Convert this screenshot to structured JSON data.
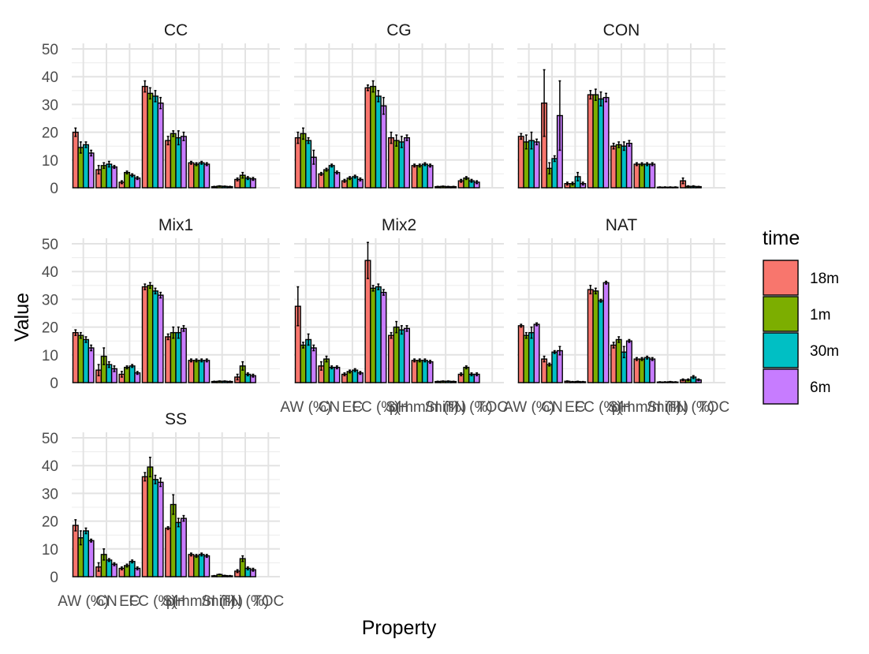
{
  "chart_data": {
    "type": "bar",
    "subtype": "faceted grouped bar with error bars",
    "xlabel": "Property",
    "ylabel": "Value",
    "ylim": [
      0,
      52
    ],
    "yticks": [
      0,
      10,
      20,
      30,
      40,
      50
    ],
    "grid": true,
    "legend": {
      "title": "time",
      "position": "right",
      "entries": [
        {
          "label": "18m",
          "color": "#F8766D"
        },
        {
          "label": "1m",
          "color": "#7CAE00"
        },
        {
          "label": "30m",
          "color": "#00BFC4"
        },
        {
          "label": "6m",
          "color": "#C77CFF"
        }
      ]
    },
    "categories": [
      "AW (%)",
      "CN",
      "EC",
      "FC (%)",
      "pH",
      "S(mm/min)",
      "SI (%)",
      "TN (%)",
      "TOC"
    ],
    "tick_labels_rendered": [
      "AW (%)",
      "CN",
      "EC",
      "FC (%)",
      "pH",
      "S(mm/min)",
      "SI (%)",
      "TN (%)",
      "TOC"
    ],
    "series_names": [
      "18m",
      "1m",
      "30m",
      "6m"
    ],
    "facets": [
      {
        "name": "CC",
        "values": [
          [
            20,
            14.5,
            15.5,
            12.5
          ],
          [
            6.5,
            8,
            8.5,
            7.5
          ],
          [
            2,
            5.5,
            4.5,
            3.5
          ],
          [
            36.5,
            34,
            33,
            30.5
          ],
          [
            17,
            19.5,
            18,
            18.5
          ],
          [
            9,
            8.5,
            9,
            8.5
          ],
          [
            0.4,
            0.6,
            0.5,
            0.4
          ],
          [
            3,
            4.5,
            3.5,
            3.2
          ],
          [
            0,
            0,
            0,
            0
          ]
        ],
        "errors": [
          [
            1.5,
            2,
            1,
            1
          ],
          [
            1.5,
            1,
            1,
            0.5
          ],
          [
            0.5,
            0.5,
            0.5,
            0.5
          ],
          [
            2,
            2,
            2,
            2
          ],
          [
            1.5,
            1,
            2.5,
            1.5
          ],
          [
            0.5,
            0.5,
            0.5,
            0.5
          ],
          [
            0.1,
            0.1,
            0.1,
            0.1
          ],
          [
            0.5,
            1,
            0.5,
            0.5
          ],
          [
            0,
            0,
            0,
            0
          ]
        ]
      },
      {
        "name": "CG",
        "values": [
          [
            18,
            19.5,
            17,
            11
          ],
          [
            5,
            6.5,
            8,
            5.5
          ],
          [
            2.5,
            3.5,
            4,
            3
          ],
          [
            36,
            36.5,
            33,
            29.5
          ],
          [
            18,
            17,
            16.5,
            18
          ],
          [
            8,
            8,
            8.5,
            8
          ],
          [
            0.4,
            0.5,
            0.4,
            0.4
          ],
          [
            2.5,
            3.5,
            2.5,
            2
          ],
          [
            0,
            0,
            0,
            0
          ]
        ],
        "errors": [
          [
            2,
            2,
            1,
            2.5
          ],
          [
            0.5,
            0.5,
            0.5,
            0.5
          ],
          [
            0.5,
            0.5,
            0.5,
            0.5
          ],
          [
            1,
            2,
            2,
            3
          ],
          [
            2,
            2,
            2,
            1
          ],
          [
            0.5,
            0.5,
            0.5,
            0.5
          ],
          [
            0.1,
            0.1,
            0.1,
            0.1
          ],
          [
            0.5,
            0.5,
            0.5,
            0.5
          ],
          [
            0,
            0,
            0,
            0
          ]
        ]
      },
      {
        "name": "CON",
        "values": [
          [
            18.5,
            16.5,
            17,
            16.5
          ],
          [
            30.5,
            7,
            10.5,
            26
          ],
          [
            1.5,
            1.5,
            4,
            1.5
          ],
          [
            33.5,
            33.5,
            32,
            32.5
          ],
          [
            15,
            15.5,
            15,
            16
          ],
          [
            8.5,
            8.5,
            8.5,
            8.5
          ],
          [
            0.2,
            0.2,
            0.2,
            0.2
          ],
          [
            2.5,
            0.5,
            0.5,
            0.4
          ],
          [
            0,
            0,
            0,
            0
          ]
        ],
        "errors": [
          [
            1,
            2.5,
            3,
            1
          ],
          [
            12,
            2,
            1,
            12.5
          ],
          [
            0.5,
            0.5,
            1.5,
            0.5
          ],
          [
            1.5,
            2,
            2.5,
            1.5
          ],
          [
            1,
            1,
            1.5,
            1
          ],
          [
            0.5,
            0.5,
            0.5,
            0.5
          ],
          [
            0.1,
            0.1,
            0.1,
            0.1
          ],
          [
            1,
            0.2,
            0.2,
            0.1
          ],
          [
            0,
            0,
            0,
            0
          ]
        ]
      },
      {
        "name": "Mix1",
        "values": [
          [
            18,
            17,
            15.5,
            12.5
          ],
          [
            4.5,
            9.5,
            6.5,
            5
          ],
          [
            3,
            5.5,
            6,
            3.5
          ],
          [
            34.5,
            35,
            33,
            31.5
          ],
          [
            16.5,
            18,
            18,
            19.5
          ],
          [
            8,
            8,
            8,
            8
          ],
          [
            0.4,
            0.5,
            0.5,
            0.4
          ],
          [
            2,
            6,
            3,
            2.5
          ],
          [
            0,
            0,
            0,
            0
          ]
        ],
        "errors": [
          [
            1,
            1,
            1,
            1
          ],
          [
            2,
            3,
            1,
            1
          ],
          [
            1,
            0.5,
            0.5,
            0.5
          ],
          [
            1,
            1,
            1,
            1
          ],
          [
            1,
            2,
            2,
            1
          ],
          [
            0.5,
            0.5,
            0.5,
            0.5
          ],
          [
            0.1,
            0.1,
            0.1,
            0.1
          ],
          [
            1,
            1.5,
            0.5,
            0.5
          ],
          [
            0,
            0,
            0,
            0
          ]
        ]
      },
      {
        "name": "Mix2",
        "values": [
          [
            27.5,
            13.5,
            15.5,
            12.5
          ],
          [
            6,
            8.5,
            5.5,
            5.5
          ],
          [
            3,
            4,
            4.5,
            3.5
          ],
          [
            44,
            34,
            34.5,
            32.5
          ],
          [
            17,
            20,
            19,
            19.5
          ],
          [
            8,
            8,
            8,
            7.5
          ],
          [
            0.4,
            0.5,
            0.5,
            0.4
          ],
          [
            3,
            5.5,
            3,
            3
          ],
          [
            0,
            0,
            0,
            0
          ]
        ],
        "errors": [
          [
            7,
            1,
            2,
            1
          ],
          [
            1.5,
            1,
            0.5,
            0.5
          ],
          [
            0.5,
            0.5,
            0.5,
            0.5
          ],
          [
            6.5,
            1,
            1,
            1
          ],
          [
            1,
            2,
            1.5,
            1
          ],
          [
            0.5,
            0.5,
            0.5,
            0.5
          ],
          [
            0.1,
            0.1,
            0.1,
            0.1
          ],
          [
            0.5,
            0.5,
            0.5,
            0.5
          ],
          [
            0,
            0,
            0,
            0
          ]
        ]
      },
      {
        "name": "NAT",
        "values": [
          [
            20.5,
            17,
            18,
            21
          ],
          [
            8.5,
            6.5,
            11,
            11.5
          ],
          [
            0.5,
            0.3,
            0.4,
            0.3
          ],
          [
            33.5,
            33,
            29.5,
            36
          ],
          [
            13.5,
            15.5,
            11,
            15
          ],
          [
            8.5,
            8.5,
            9,
            8.5
          ],
          [
            0.2,
            0.2,
            0.3,
            0.2
          ],
          [
            1,
            1,
            2,
            1
          ],
          [
            0,
            0,
            0,
            0
          ]
        ],
        "errors": [
          [
            0.5,
            1,
            2,
            0.5
          ],
          [
            1,
            0.5,
            0.5,
            1.5
          ],
          [
            0.1,
            0.1,
            0.1,
            0.1
          ],
          [
            1.5,
            1,
            0.5,
            0.5
          ],
          [
            1,
            1,
            2,
            0.5
          ],
          [
            0.5,
            0.5,
            0.5,
            0.5
          ],
          [
            0.1,
            0.1,
            0.1,
            0.1
          ],
          [
            0.3,
            0.3,
            0.5,
            0.3
          ],
          [
            0,
            0,
            0,
            0
          ]
        ]
      },
      {
        "name": "SS",
        "values": [
          [
            18.5,
            14,
            16.5,
            13
          ],
          [
            3.5,
            8,
            6,
            4.5
          ],
          [
            3,
            4,
            5.5,
            3
          ],
          [
            36,
            39.5,
            35,
            34
          ],
          [
            17.5,
            26,
            19.5,
            21
          ],
          [
            8,
            7.5,
            8,
            7.5
          ],
          [
            0.3,
            0.8,
            0.4,
            0.3
          ],
          [
            2,
            6.5,
            3,
            2.5
          ],
          [
            0,
            0,
            0,
            0
          ]
        ],
        "errors": [
          [
            2,
            2.5,
            1,
            0.5
          ],
          [
            1.5,
            2,
            0.5,
            0.5
          ],
          [
            0.5,
            0.5,
            0.5,
            0.5
          ],
          [
            1.5,
            3.5,
            1.5,
            1.5
          ],
          [
            0.5,
            3.5,
            1.5,
            1
          ],
          [
            0.5,
            0.5,
            0.5,
            0.5
          ],
          [
            0.1,
            0.1,
            0.1,
            0.1
          ],
          [
            0.5,
            1,
            0.5,
            0.5
          ],
          [
            0,
            0,
            0,
            0
          ]
        ]
      }
    ]
  }
}
